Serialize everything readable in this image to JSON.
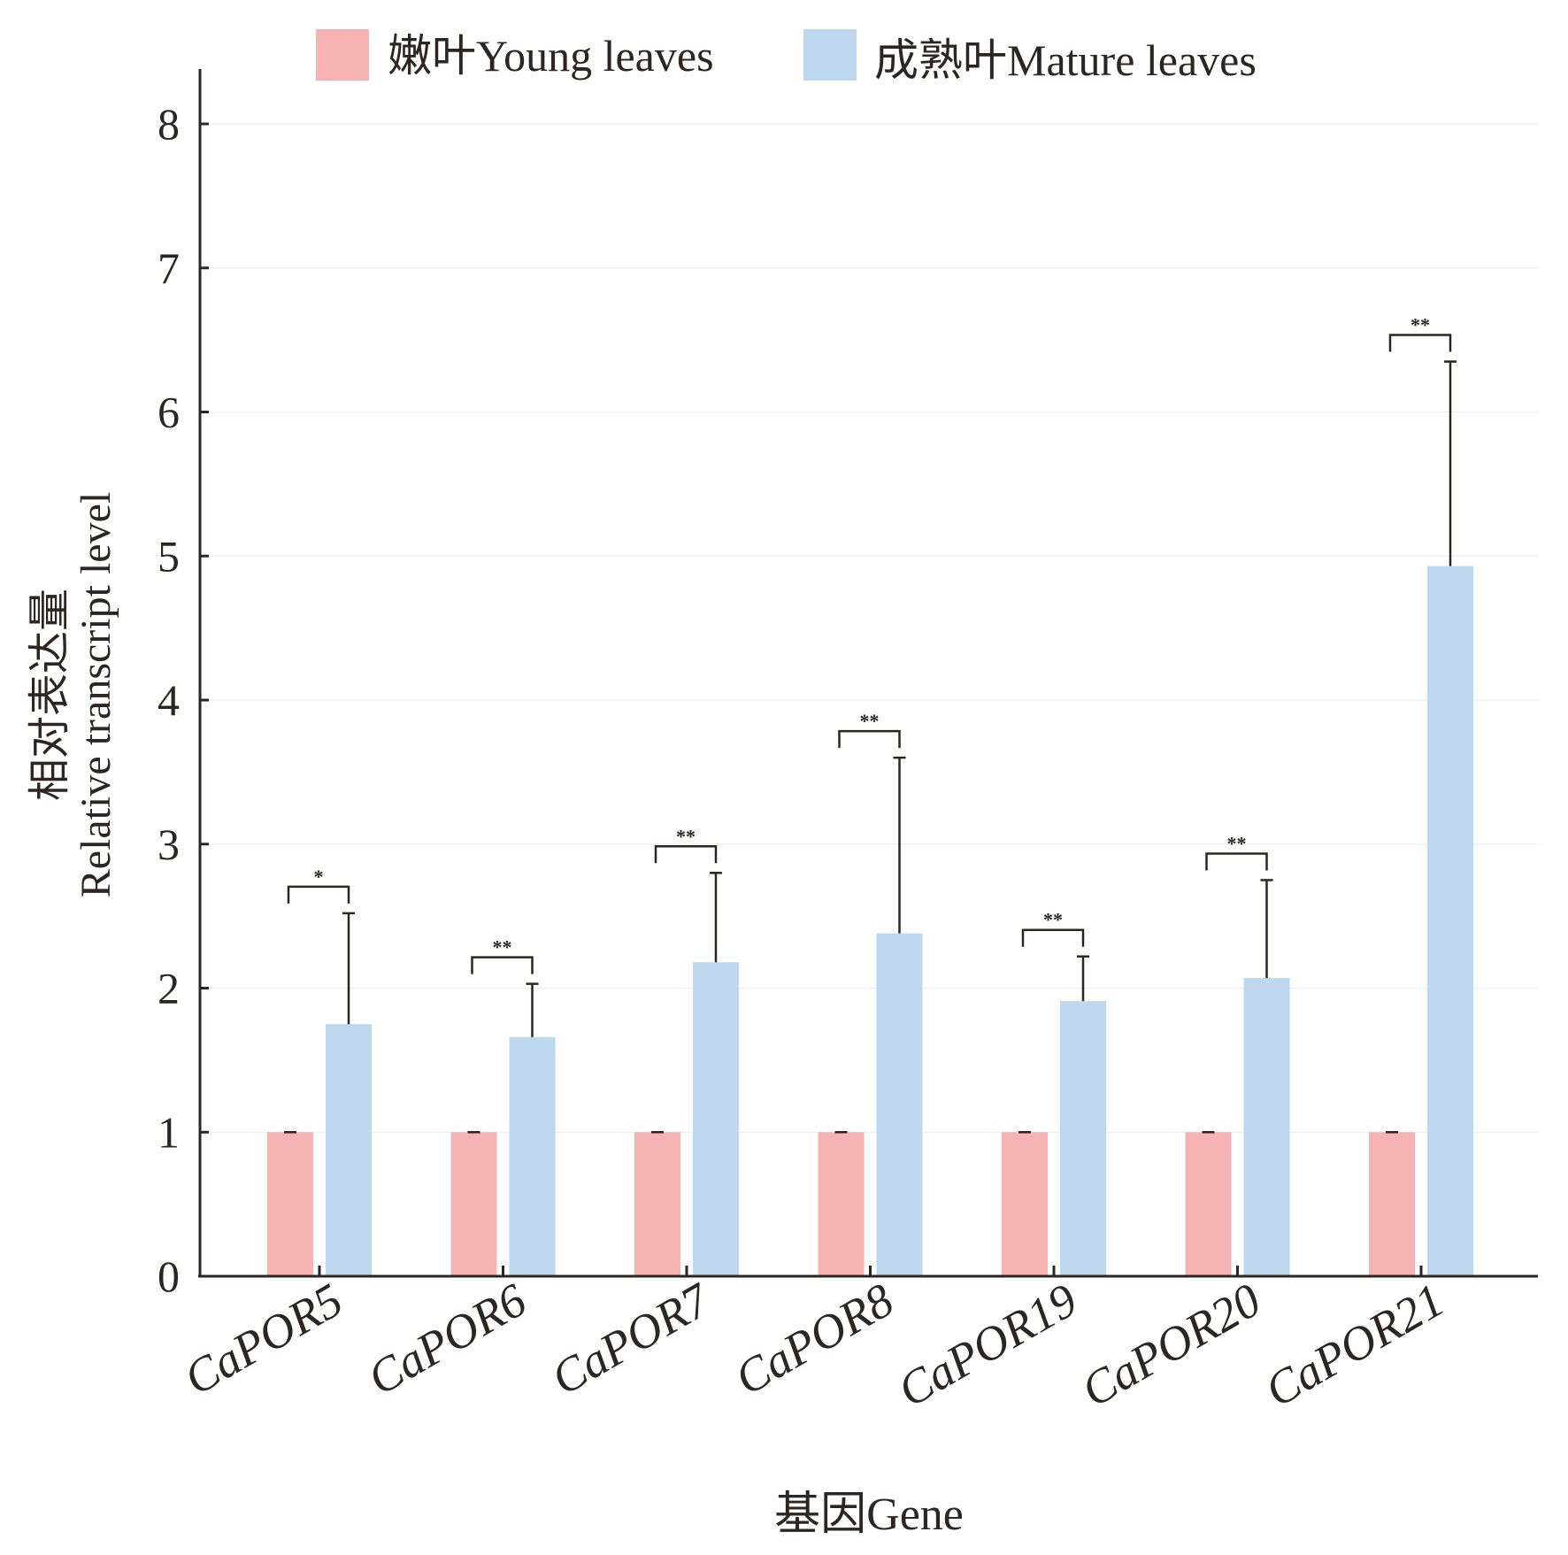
{
  "chart_data": {
    "type": "bar",
    "categories": [
      "CaPOR5",
      "CaPOR6",
      "CaPOR7",
      "CaPOR8",
      "CaPOR19",
      "CaPOR20",
      "CaPOR21"
    ],
    "series": [
      {
        "name": "嫩叶Young leaves",
        "color": "#f7b3b3",
        "values": [
          1,
          1,
          1,
          1,
          1,
          1,
          1
        ],
        "errors": [
          0,
          0,
          0,
          0,
          0,
          0,
          0
        ]
      },
      {
        "name": "成熟叶Mature leaves",
        "color": "#bdd7ee",
        "values": [
          1.75,
          1.66,
          2.18,
          2.38,
          1.91,
          2.07,
          4.93
        ],
        "errors": [
          0.77,
          0.37,
          0.62,
          1.22,
          0.31,
          0.68,
          1.42
        ]
      }
    ],
    "significance": [
      "*",
      "**",
      "**",
      "**",
      "**",
      "**",
      "**"
    ],
    "ylim": [
      0,
      8
    ],
    "yticks": [
      0,
      1,
      2,
      3,
      4,
      5,
      6,
      7,
      8
    ],
    "ylabel": [
      "相对表达量",
      "Relative transcript level"
    ],
    "xlabel": "基因Gene",
    "legend_position": "top"
  }
}
